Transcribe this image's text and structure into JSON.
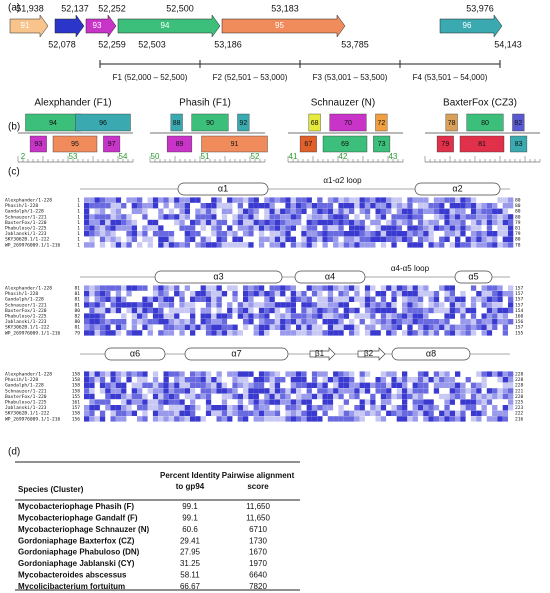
{
  "panel_a": {
    "label": "(a)",
    "top_coords": [
      "51,938",
      "52,137",
      "52,252",
      "52,500",
      "53,183",
      "53,976"
    ],
    "bottom_coords": [
      "52,078",
      "52,259",
      "52,503",
      "53,186",
      "53,785",
      "54,143"
    ],
    "genes": [
      "91",
      "93",
      "94",
      "95",
      "96"
    ],
    "fragments": [
      "F1 (52,000 – 52,500)",
      "F2 (52,501 – 53,000)",
      "F3 (53,001 – 53,500)",
      "F4 (53,501 – 54,000)"
    ]
  },
  "panel_b": {
    "label": "(b)",
    "maps": [
      {
        "title": "Alexphander (F1)",
        "top": [
          "94",
          "96"
        ],
        "bottom": [
          "93",
          "95",
          "97"
        ],
        "ruler": [
          "2",
          "53",
          "54"
        ]
      },
      {
        "title": "Phasih (F1)",
        "top": [
          "88",
          "90",
          "92"
        ],
        "bottom": [
          "89",
          "91"
        ],
        "ruler": [
          "50",
          "51",
          "52"
        ]
      },
      {
        "title": "Schnauzer (N)",
        "top": [
          "68",
          "70",
          "72"
        ],
        "bottom": [
          "67",
          "69",
          "73"
        ],
        "ruler": [
          "41",
          "42",
          "43"
        ]
      },
      {
        "title": "BaxterFox (CZ3)",
        "top": [
          "78",
          "80",
          "82"
        ],
        "bottom": [
          "79",
          "81",
          "83"
        ],
        "ruler": []
      }
    ]
  },
  "panel_c": {
    "label": "(c)",
    "structure": [
      [
        "α1",
        "α1-α2 loop",
        "α2"
      ],
      [
        "α3",
        "α4",
        "α4-α5 loop",
        "α5"
      ],
      [
        "α6",
        "α7",
        "β1",
        "β2",
        "α8"
      ]
    ],
    "sequences": [
      "Alexphander/1-228",
      "Phasih/1-228",
      "Gandalph/1-228",
      "Schnauzer/1-221",
      "BaxterFox/1-220",
      "Phabuloso/1-225",
      "Jablanski/1-223",
      "SKY3062B.1/1-222",
      "WP_269976009.1/1-216"
    ],
    "blocks": [
      {
        "starts": [
          "1",
          "1",
          "1",
          "1",
          "1",
          "1",
          "1",
          "1",
          "1"
        ],
        "ends": [
          "80",
          "80",
          "80",
          "80",
          "79",
          "81",
          "79",
          "80",
          "78"
        ]
      },
      {
        "starts": [
          "81",
          "81",
          "81",
          "81",
          "80",
          "82",
          "80",
          "81",
          "79"
        ],
        "ends": [
          "157",
          "157",
          "157",
          "157",
          "154",
          "160",
          "156",
          "157",
          "155"
        ]
      },
      {
        "starts": [
          "158",
          "158",
          "158",
          "158",
          "155",
          "161",
          "157",
          "158",
          "156"
        ],
        "ends": [
          "228",
          "228",
          "228",
          "221",
          "220",
          "225",
          "223",
          "222",
          "216"
        ]
      }
    ]
  },
  "panel_d": {
    "label": "(d)",
    "header": [
      "Species (Cluster)",
      "Percent Identity to gp94",
      "Pairwise alignment score"
    ],
    "rows": [
      [
        "Mycobacteriophage Phasih (F)",
        "99.1",
        "11,650"
      ],
      [
        "Mycobacteriophage Gandalf (F)",
        "99.1",
        "11,650"
      ],
      [
        "Mycobacteriophage Schnauzer (N)",
        "60.6",
        "6710"
      ],
      [
        "Gordoniaphage Baxterfox (CZ)",
        "29.41",
        "1730"
      ],
      [
        "Gordoniaphage Phabuloso (DN)",
        "27.95",
        "1670"
      ],
      [
        "Gordoniaphage Jablanski (CY)",
        "31.25",
        "1970"
      ],
      [
        "Mycobacteroides abscessus",
        "58.11",
        "6640"
      ],
      [
        "Mycolicibacterium fortuitum",
        "66.67",
        "7820"
      ]
    ]
  }
}
